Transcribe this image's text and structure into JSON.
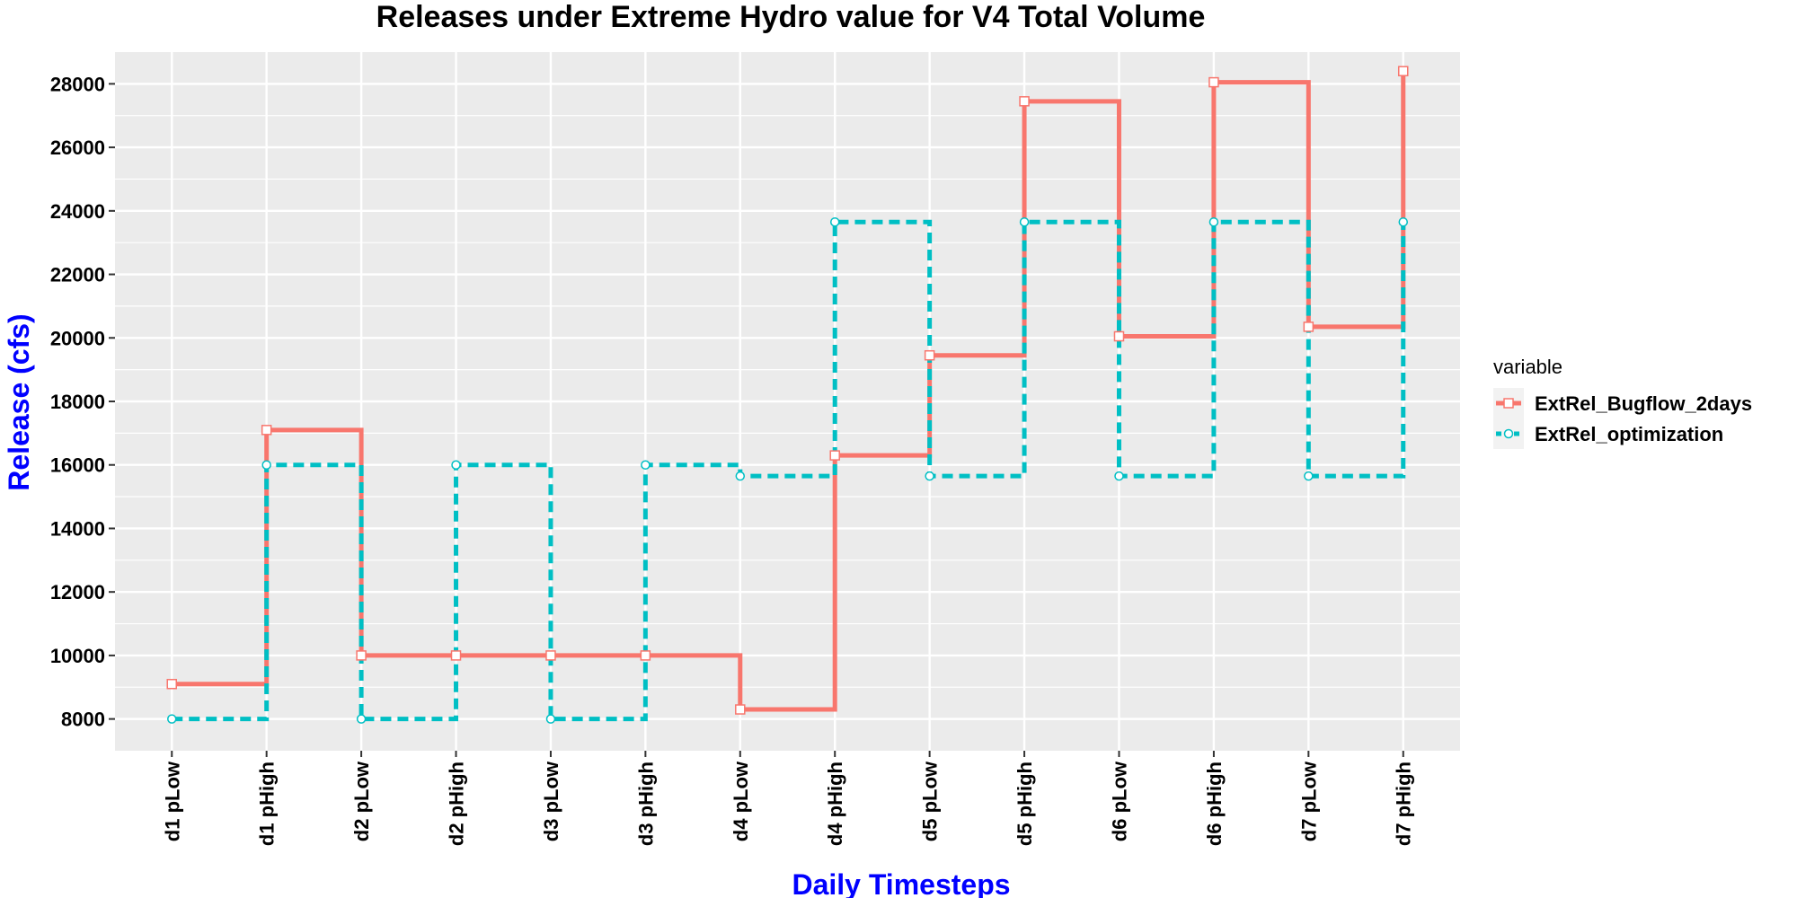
{
  "chart_data": {
    "type": "line",
    "step": true,
    "title": "Releases under Extreme Hydro value for V4 Total Volume",
    "xlabel": "Daily Timesteps",
    "ylabel": "Release (cfs)",
    "categories": [
      "d1 pLow",
      "d1 pHigh",
      "d2 pLow",
      "d2 pHigh",
      "d3 pLow",
      "d3 pHigh",
      "d4 pLow",
      "d4 pHigh",
      "d5 pLow",
      "d5 pHigh",
      "d6 pLow",
      "d6 pHigh",
      "d7 pLow",
      "d7 pHigh"
    ],
    "ylim": [
      7000,
      29000
    ],
    "yticks": [
      8000,
      10000,
      12000,
      14000,
      16000,
      18000,
      20000,
      22000,
      24000,
      26000,
      28000
    ],
    "grid": true,
    "legend": {
      "title": "variable",
      "position": "right"
    },
    "series": [
      {
        "name": "ExtRel_Bugflow_2days",
        "color": "#F8766D",
        "line": "solid",
        "marker": "square",
        "values": [
          9100,
          17100,
          10000,
          10000,
          10000,
          10000,
          8300,
          16300,
          19450,
          27450,
          20050,
          28050,
          20350,
          28400
        ]
      },
      {
        "name": "ExtRel_optimization",
        "color": "#00BFC4",
        "line": "dashed",
        "marker": "circle",
        "values": [
          8000,
          16000,
          8000,
          16000,
          8000,
          16000,
          15650,
          23650,
          15650,
          23650,
          15650,
          23650,
          15650,
          23650
        ]
      }
    ]
  },
  "styles": {
    "panel_bg": "#EBEBEB",
    "grid_color": "#FFFFFF",
    "axis_title_color": "#0000FF"
  }
}
